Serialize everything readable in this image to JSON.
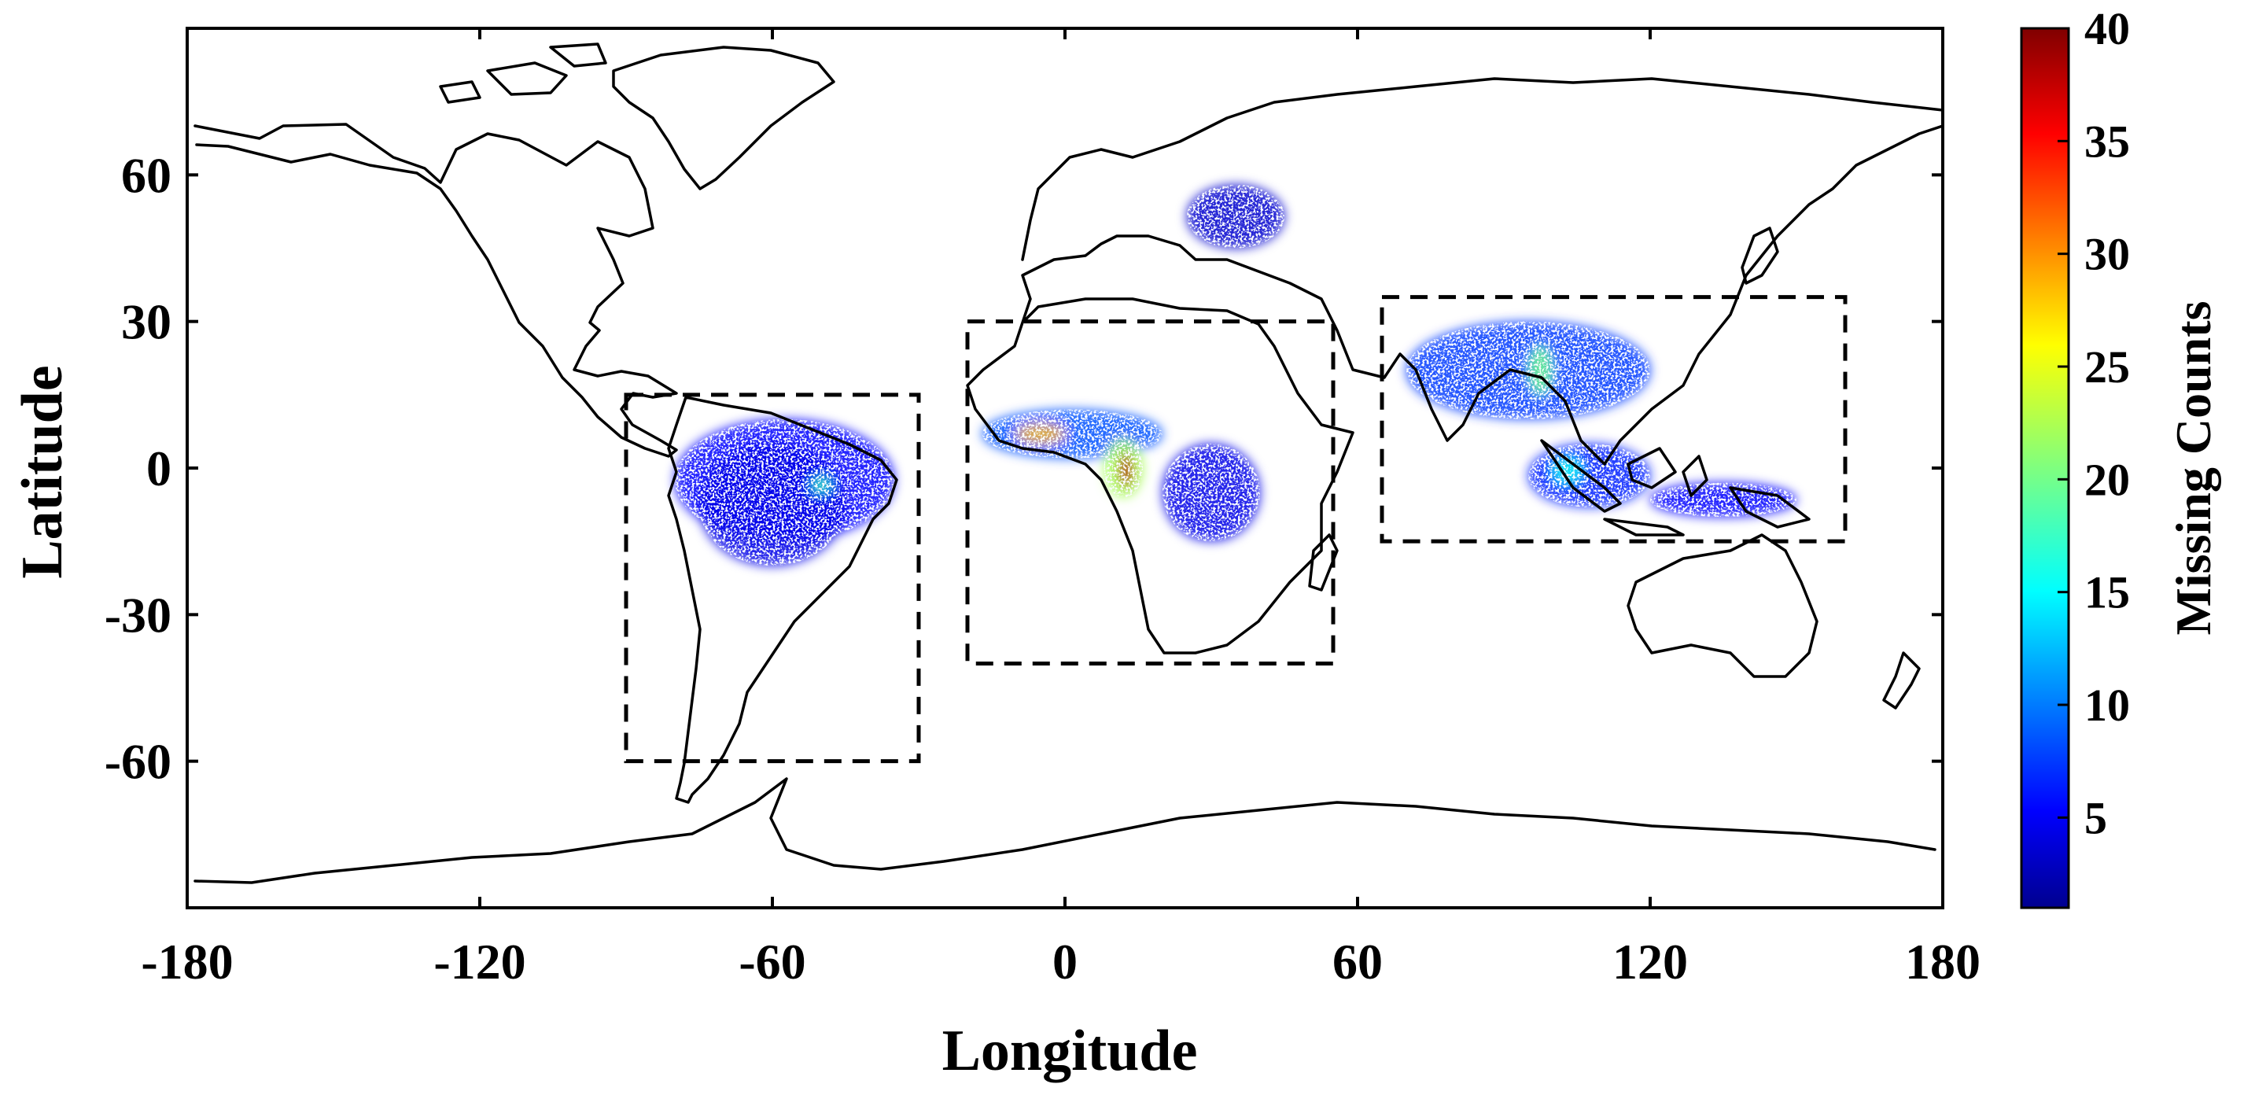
{
  "chart_data": {
    "type": "heatmap",
    "title": "",
    "xlabel": "Longitude",
    "ylabel": "Latitude",
    "xlim": [
      -180,
      180
    ],
    "ylim": [
      -90,
      90
    ],
    "xticks": [
      -180,
      -120,
      -60,
      0,
      60,
      120,
      180
    ],
    "yticks": [
      -60,
      -30,
      0,
      30,
      60
    ],
    "xtick_labels": [
      "-180",
      "-120",
      "-60",
      "0",
      "60",
      "120",
      "180"
    ],
    "ytick_labels": [
      "-60",
      "-30",
      "0",
      "30",
      "60"
    ],
    "colorbar": {
      "label": "Missing Counts",
      "range": [
        1,
        40
      ],
      "ticks": [
        5,
        10,
        15,
        20,
        25,
        30,
        35,
        40
      ],
      "tick_labels": [
        "5",
        "10",
        "15",
        "20",
        "25",
        "30",
        "35",
        "40"
      ],
      "colormap": "jet",
      "position": "right"
    },
    "dashed_boxes": [
      {
        "lon": [
          -90,
          -30
        ],
        "lat": [
          -60,
          15
        ]
      },
      {
        "lon": [
          -20,
          55
        ],
        "lat": [
          -40,
          30
        ]
      },
      {
        "lon": [
          65,
          160
        ],
        "lat": [
          -15,
          35
        ]
      }
    ],
    "hotspots": [
      {
        "lon": [
          -80,
          -35
        ],
        "lat": [
          -15,
          10
        ],
        "level": 6
      },
      {
        "lon": [
          -75,
          -45
        ],
        "lat": [
          -20,
          5
        ],
        "level": 5
      },
      {
        "lon": [
          -52,
          -48
        ],
        "lat": [
          -5,
          -2
        ],
        "level": 18
      },
      {
        "lon": [
          -17,
          20
        ],
        "lat": [
          2,
          12
        ],
        "level": 9
      },
      {
        "lon": [
          -10,
          0
        ],
        "lat": [
          5,
          9
        ],
        "level": 28
      },
      {
        "lon": [
          8,
          16
        ],
        "lat": [
          -6,
          6
        ],
        "level": 22
      },
      {
        "lon": [
          11,
          14
        ],
        "lat": [
          -4,
          3
        ],
        "level": 38
      },
      {
        "lon": [
          20,
          40
        ],
        "lat": [
          -15,
          5
        ],
        "level": 5
      },
      {
        "lon": [
          70,
          120
        ],
        "lat": [
          10,
          30
        ],
        "level": 8
      },
      {
        "lon": [
          95,
          100
        ],
        "lat": [
          15,
          25
        ],
        "level": 20
      },
      {
        "lon": [
          95,
          120
        ],
        "lat": [
          -8,
          5
        ],
        "level": 7
      },
      {
        "lon": [
          100,
          106
        ],
        "lat": [
          -3,
          2
        ],
        "level": 16
      },
      {
        "lon": [
          120,
          150
        ],
        "lat": [
          -10,
          -3
        ],
        "level": 6
      },
      {
        "lon": [
          25,
          45
        ],
        "lat": [
          45,
          58
        ],
        "level": 4
      }
    ]
  },
  "colors": {
    "background": "#ffffff",
    "coastline": "#000000",
    "frame": "#000000"
  }
}
